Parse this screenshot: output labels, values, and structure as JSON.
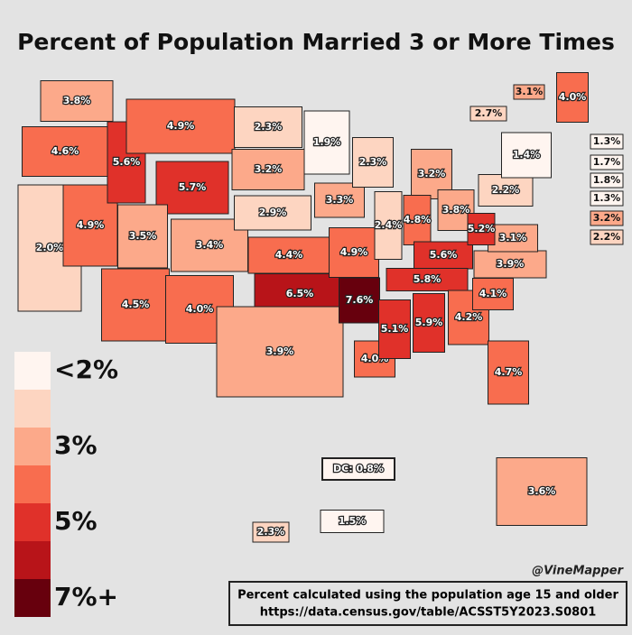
{
  "title": "Percent of Population Married 3 or More Times",
  "regions": [
    {
      "value": 3.8,
      "label": "3.8%"
    },
    {
      "value": 4.6,
      "label": "4.6%"
    },
    {
      "value": 2.0,
      "label": "2.0%"
    },
    {
      "value": 4.9,
      "label": "4.9%"
    },
    {
      "value": 5.6,
      "label": "5.6%"
    },
    {
      "value": 4.9,
      "label": "4.9%"
    },
    {
      "value": 5.7,
      "label": "5.7%"
    },
    {
      "value": 3.5,
      "label": "3.5%"
    },
    {
      "value": 4.5,
      "label": "4.5%"
    },
    {
      "value": 3.4,
      "label": "3.4%"
    },
    {
      "value": 4.0,
      "label": "4.0%"
    },
    {
      "value": 2.3,
      "label": "2.3%"
    },
    {
      "value": 3.2,
      "label": "3.2%"
    },
    {
      "value": 2.9,
      "label": "2.9%"
    },
    {
      "value": 4.4,
      "label": "4.4%"
    },
    {
      "value": 6.5,
      "label": "6.5%"
    },
    {
      "value": 3.9,
      "label": "3.9%"
    },
    {
      "value": 1.9,
      "label": "1.9%"
    },
    {
      "value": 3.3,
      "label": "3.3%"
    },
    {
      "value": 4.9,
      "label": "4.9%"
    },
    {
      "value": 7.6,
      "label": "7.6%"
    },
    {
      "value": 4.0,
      "label": "4.0%"
    },
    {
      "value": 2.3,
      "label": "2.3%"
    },
    {
      "value": 2.4,
      "label": "2.4%"
    },
    {
      "value": 3.2,
      "label": "3.2%"
    },
    {
      "value": 4.8,
      "label": "4.8%"
    },
    {
      "value": 3.8,
      "label": "3.8%"
    },
    {
      "value": 5.6,
      "label": "5.6%"
    },
    {
      "value": 5.8,
      "label": "5.8%"
    },
    {
      "value": 5.1,
      "label": "5.1%"
    },
    {
      "value": 5.9,
      "label": "5.9%"
    },
    {
      "value": 4.2,
      "label": "4.2%"
    },
    {
      "value": 4.7,
      "label": "4.7%"
    },
    {
      "value": 4.1,
      "label": "4.1%"
    },
    {
      "value": 3.9,
      "label": "3.9%"
    },
    {
      "value": 3.1,
      "label": "3.1%"
    },
    {
      "value": 5.2,
      "label": "5.2%"
    },
    {
      "value": 2.2,
      "label": "2.2%"
    },
    {
      "value": 1.4,
      "label": "1.4%"
    },
    {
      "value": 4.0,
      "label": "4.0%"
    },
    {
      "value": 3.6,
      "label": "3.6%"
    },
    {
      "value": 2.3,
      "label": "2.3%"
    },
    {
      "value": 1.5,
      "label": "1.5%"
    },
    {
      "value": 3.1,
      "label": "3.1%"
    },
    {
      "value": 2.7,
      "label": "2.7%"
    },
    {
      "value": 1.3,
      "label": "1.3%"
    },
    {
      "value": 1.7,
      "label": "1.7%"
    },
    {
      "value": 1.8,
      "label": "1.8%"
    },
    {
      "value": 1.3,
      "label": "1.3%"
    },
    {
      "value": 3.2,
      "label": "3.2%"
    },
    {
      "value": 2.2,
      "label": "2.2%"
    },
    {
      "value": 0.8,
      "label": "DC: 0.8%"
    }
  ],
  "legend": {
    "colors": [
      "#fff5f0",
      "#fdd5c1",
      "#fca98a",
      "#f86d4f",
      "#e0312a",
      "#b81419",
      "#67000d"
    ],
    "labels": [
      "<2%",
      "3%",
      "5%",
      "7%+"
    ]
  },
  "credit": "@VineMapper",
  "note": [
    "Percent calculated using the population age 15 and older",
    "https://data.census.gov/table/ACSST5Y2023.S0801"
  ]
}
